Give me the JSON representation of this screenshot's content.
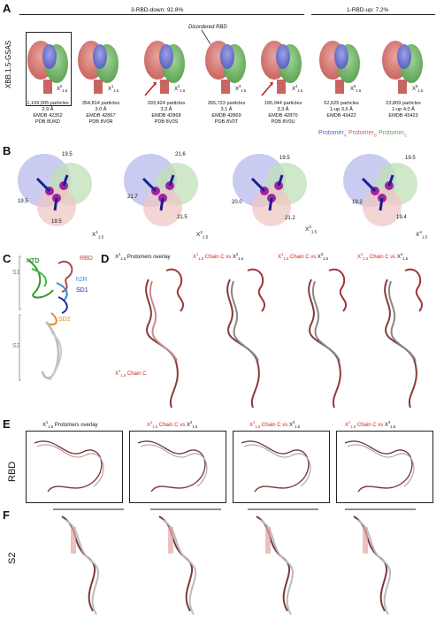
{
  "panels": {
    "a": "A",
    "b": "B",
    "c": "C",
    "d": "D",
    "e": "E",
    "f": "F"
  },
  "panel_a": {
    "side_label": "XBB.1.5-GSAS",
    "group1": "3-RBD-down: 92.8%",
    "group2": "1-RBD-up: 7.2%",
    "annotation": "Disordered RBD",
    "maps": [
      {
        "name": "X",
        "sup": "0",
        "sub": "1.5",
        "particles": "1,109,005 particles",
        "res": "2.9 Å",
        "emdb": "EMDB 42352",
        "pdb": "PDB 8UKD"
      },
      {
        "name": "X",
        "sup": "1",
        "sub": "1.5",
        "particles": "354,814 particles",
        "res": "3.0 Å",
        "emdb": "EMDB 42867",
        "pdb": "PDB 8V0R"
      },
      {
        "name": "X",
        "sup": "2",
        "sub": "1.5",
        "particles": "293,424 particles",
        "res": "3.3 Å",
        "emdb": "EMDB 42868",
        "pdb": "PDB 8V0S"
      },
      {
        "name": "X",
        "sup": "3",
        "sub": "1.5",
        "particles": "265,723 particles",
        "res": "3.1 Å",
        "emdb": "EMDB 42869",
        "pdb": "PDB 8V0T"
      },
      {
        "name": "X",
        "sup": "4",
        "sub": "1.5",
        "particles": "195,044 particles",
        "res": "3.3 Å",
        "emdb": "EMDB 42870",
        "pdb": "PDB 8V0U"
      },
      {
        "name": "X",
        "sup": "5",
        "sub": "1.5",
        "particles": "62,625 particles",
        "res": "1-up 3.6 Å",
        "emdb": "EMDB 43422",
        "pdb": ""
      },
      {
        "name": "X",
        "sup": "6",
        "sub": "1.5",
        "particles": "23,809 particles",
        "res": "1-up 4.0 Å",
        "emdb": "EMDB 43423",
        "pdb": ""
      }
    ],
    "legend": {
      "a": "Protomer",
      "a_sub": "A",
      "b": "Protomer",
      "b_sub": "B",
      "c": "Protomer",
      "c_sub": "C"
    },
    "colors": {
      "protomer_a": "#6a6fc9",
      "protomer_b": "#d98a8a",
      "protomer_c": "#6fb86a"
    }
  },
  "panel_b": {
    "views": [
      {
        "sup": "1",
        "sub": "1.5",
        "d1": "19.5",
        "d2": "19.5",
        "d3": "19.5"
      },
      {
        "sup": "2",
        "sub": "1.5",
        "d1": "21.6",
        "d2": "21.7",
        "d3": "21.5"
      },
      {
        "sup": "3",
        "sub": "1.5",
        "d1": "19.5",
        "d2": "20.0",
        "d3": "21.2"
      },
      {
        "sup": "4",
        "sub": "1.5",
        "d1": "19.5",
        "d2": "19.2",
        "d3": "19.4"
      }
    ]
  },
  "panel_c": {
    "s1": "S1",
    "s2": "S2",
    "ntd": "NTD",
    "rbd": "RBD",
    "h2r": "h2R",
    "sd1": "SD1",
    "sd2": "SD2"
  },
  "panel_d": {
    "title1": "Protomers overlay",
    "vs": "Chain C vs",
    "chain_c": "Chain C"
  },
  "panel_e": {
    "side": "RBD",
    "title1": "Protomers overlay",
    "vs": "Chain C vs"
  },
  "panel_f": {
    "side": "S2"
  }
}
